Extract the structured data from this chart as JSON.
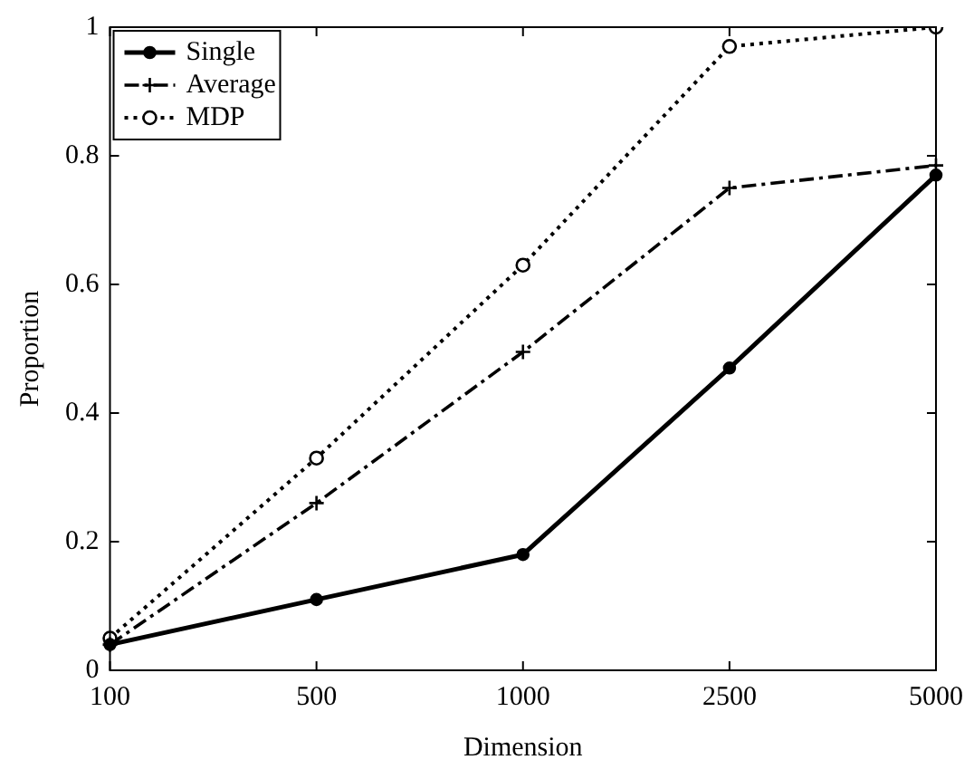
{
  "chart_data": {
    "type": "line",
    "xlabel": "Dimension",
    "ylabel": "Proportion",
    "categories": [
      "100",
      "500",
      "1000",
      "2500",
      "5000"
    ],
    "ylim": [
      0,
      1
    ],
    "yticks": [
      0,
      0.2,
      0.4,
      0.6,
      0.8,
      1
    ],
    "grid": false,
    "legend": "top left",
    "series": [
      {
        "name": "Single",
        "color": "#000000",
        "values": [
          0.04,
          0.11,
          0.18,
          0.47,
          0.77
        ],
        "marker": "circle",
        "line_style": "solid"
      },
      {
        "name": "Average",
        "color": "#000000",
        "values": [
          0.04,
          0.26,
          0.495,
          0.75,
          0.785
        ],
        "marker": "cross",
        "line_style": "dashed"
      },
      {
        "name": "MDP",
        "color": "#000000",
        "values": [
          0.05,
          0.33,
          0.63,
          0.97,
          1.0
        ],
        "marker": "circle_open",
        "line_style": "dotted"
      }
    ]
  }
}
